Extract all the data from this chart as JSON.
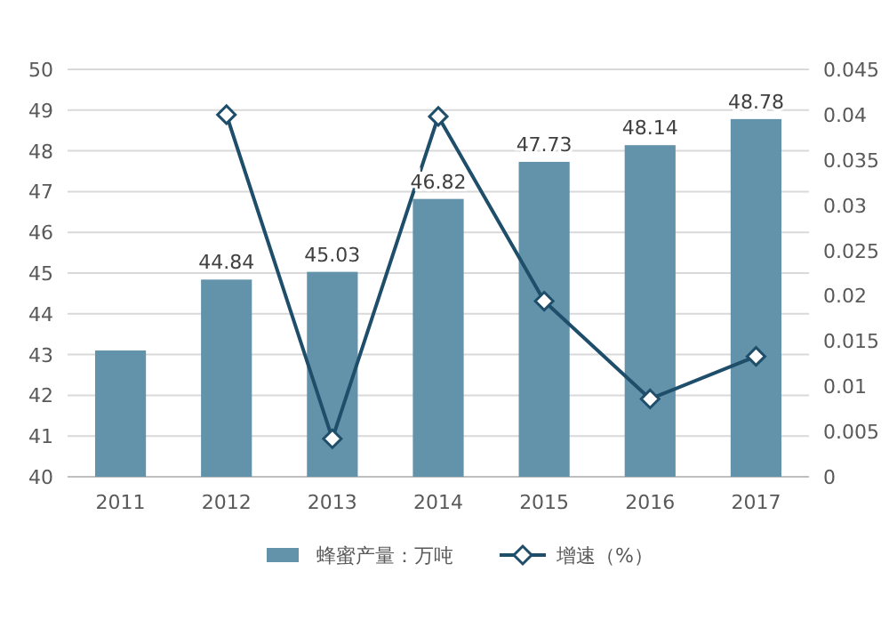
{
  "chart_data": {
    "type": "bar",
    "categories": [
      "2011",
      "2012",
      "2013",
      "2014",
      "2015",
      "2016",
      "2017"
    ],
    "series": [
      {
        "name": "蜂蜜产量：万吨",
        "color": "#6392ab",
        "values": [
          43.1,
          44.84,
          45.03,
          46.82,
          47.73,
          48.14,
          48.78
        ],
        "value_labels": [
          null,
          "44.84",
          "45.03",
          "46.82",
          "47.73",
          "48.14",
          "48.78"
        ]
      },
      {
        "name": "增速（%）",
        "type": "line",
        "axis": "y2",
        "color": "#1f4e6b",
        "marker": "diamond",
        "values": [
          null,
          0.04,
          0.0042,
          0.0398,
          0.0194,
          0.0086,
          0.0133
        ]
      }
    ],
    "ylim": [
      40,
      50
    ],
    "yticks": [
      40,
      41,
      42,
      43,
      44,
      45,
      46,
      47,
      48,
      49,
      50
    ],
    "y2lim": [
      0,
      0.045
    ],
    "y2ticks": [
      0,
      0.005,
      0.01,
      0.015,
      0.02,
      0.025,
      0.03,
      0.035,
      0.04,
      0.045
    ],
    "grid": "y",
    "legend": "bottom"
  }
}
